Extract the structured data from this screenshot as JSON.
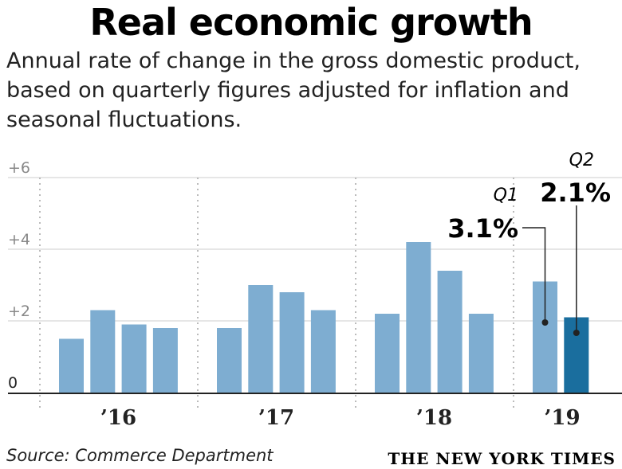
{
  "chart_data": {
    "type": "bar",
    "title": "Real economic growth",
    "subtitle": "Annual rate of change in the gross domestic product, based on quarterly figures adjusted for inflation and seasonal fluctuations.",
    "ylim": [
      0,
      6
    ],
    "yticks": [
      0,
      2,
      4,
      6
    ],
    "ytick_labels": [
      "0",
      "+2",
      "+4",
      "+6"
    ],
    "grid": true,
    "groups": [
      {
        "label": "’16",
        "values": [
          1.5,
          2.3,
          1.9,
          1.8
        ]
      },
      {
        "label": "’17",
        "values": [
          1.8,
          3.0,
          2.8,
          2.3
        ]
      },
      {
        "label": "’18",
        "values": [
          2.2,
          4.2,
          3.4,
          2.2
        ]
      },
      {
        "label": "’19",
        "values": [
          3.1,
          2.1
        ]
      }
    ],
    "annotations": [
      {
        "quarter": "Q1",
        "value": "3.1%"
      },
      {
        "quarter": "Q2",
        "value": "2.1%"
      }
    ],
    "colors": {
      "bar": "#7eadd1",
      "highlight": "#1a6e9e"
    }
  },
  "source": "Source: Commerce Department",
  "credit": "THE NEW YORK TIMES"
}
